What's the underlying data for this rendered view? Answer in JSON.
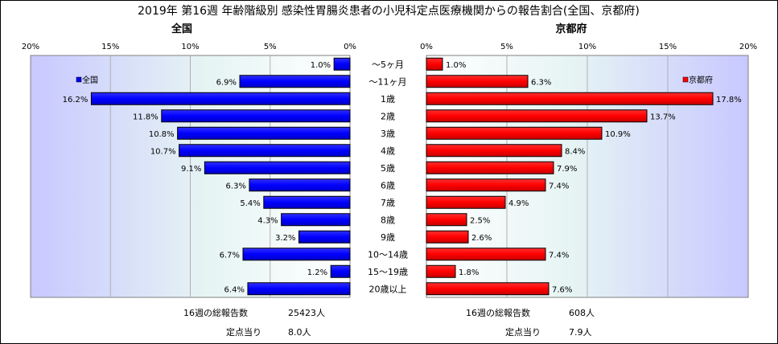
{
  "title": "2019年 第16週 年齢階級別 感染性胃腸炎患者の小児科定点医療機関からの報告割合(全国、京都府)",
  "chart_data": {
    "type": "bar",
    "orientation": "horizontal-butterfly",
    "categories": [
      "～5ヶ月",
      "～11ヶ月",
      "1歳",
      "2歳",
      "3歳",
      "4歳",
      "5歳",
      "6歳",
      "7歳",
      "8歳",
      "9歳",
      "10～14歳",
      "15～19歳",
      "20歳以上"
    ],
    "xlim": [
      0,
      20
    ],
    "ticks": [
      "20%",
      "15%",
      "10%",
      "5%",
      "0%"
    ],
    "ticks_right": [
      "0%",
      "5%",
      "10%",
      "15%",
      "20%"
    ],
    "grid": true,
    "series": [
      {
        "name": "全国",
        "panel_title": "全国",
        "color": "#0000ff",
        "values": [
          1.0,
          6.9,
          16.2,
          11.8,
          10.8,
          10.7,
          9.1,
          6.3,
          5.4,
          4.3,
          3.2,
          6.7,
          1.2,
          6.4
        ],
        "labels": [
          "1.0%",
          "6.9%",
          "16.2%",
          "11.8%",
          "10.8%",
          "10.7%",
          "9.1%",
          "6.3%",
          "5.4%",
          "4.3%",
          "3.2%",
          "6.7%",
          "1.2%",
          "6.4%"
        ],
        "legend_position": "top-left"
      },
      {
        "name": "京都府",
        "panel_title": "京都府",
        "color": "#ff0000",
        "values": [
          1.0,
          6.3,
          17.8,
          13.7,
          10.9,
          8.4,
          7.9,
          7.4,
          4.9,
          2.5,
          2.6,
          7.4,
          1.8,
          7.6
        ],
        "labels": [
          "1.0%",
          "6.3%",
          "17.8%",
          "13.7%",
          "10.9%",
          "8.4%",
          "7.9%",
          "7.4%",
          "4.9%",
          "2.5%",
          "2.6%",
          "7.4%",
          "1.8%",
          "7.6%"
        ],
        "legend_position": "top-right"
      }
    ]
  },
  "footer": {
    "national": {
      "total_label": "16週の総報告数",
      "total_value": "25423人",
      "per_label": "定点当り",
      "per_value": "8.0人"
    },
    "kyoto": {
      "total_label": "16週の総報告数",
      "total_value": "608人",
      "per_label": "定点当り",
      "per_value": "7.9人"
    }
  },
  "colors": {
    "plot_bg_outer": "#c8c8ff",
    "plot_bg_inner": "#e8f4f4",
    "national_bar": "#0000ff",
    "kyoto_bar": "#ff0000"
  }
}
